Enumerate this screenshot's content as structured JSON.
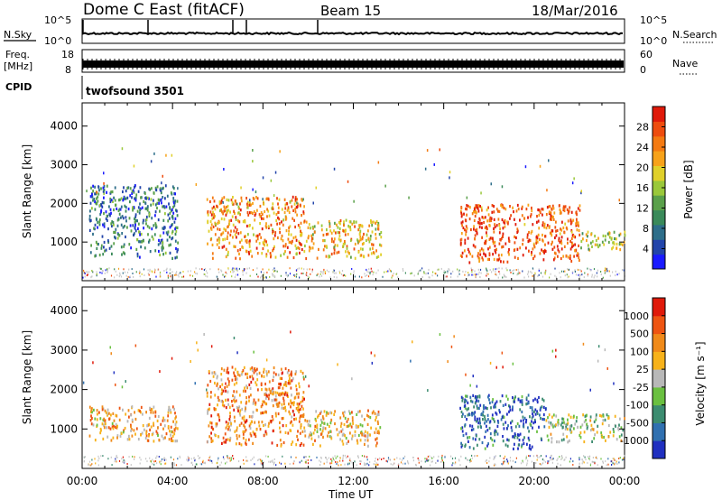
{
  "header": {
    "title": "Dome C East (fitACF)",
    "beam": "Beam 15",
    "date": "18/Mar/2016"
  },
  "status_panels": {
    "nsky_label": "N.Sky",
    "nsearch_label": "N.Search",
    "nsky_ticks": [
      "10^5",
      "10^0"
    ],
    "nsearch_ticks": [
      "10^5",
      "10^0"
    ],
    "freq_label": "Freq.",
    "freq_unit": "[MHz]",
    "freq_ticks": [
      "18",
      "8"
    ],
    "nave_label": "Nave",
    "nave_ticks": [
      "60",
      "0"
    ],
    "cpid_label": "CPID",
    "cpid_value": "twofsound 3501"
  },
  "colors": {
    "power_scale": [
      "#1a1aff",
      "#2244aa",
      "#2e6e8a",
      "#3a8a5a",
      "#5aa04a",
      "#9ac83a",
      "#e0d02a",
      "#f7a21a",
      "#f47a12",
      "#ee4c0e",
      "#e01a0a"
    ],
    "velocity_scale": [
      "#2030c0",
      "#3070b0",
      "#3c8c70",
      "#6ac040",
      "#b8b8b8",
      "#f7b21a",
      "#f08a1a",
      "#ee5512",
      "#e01a0a"
    ],
    "ground_scatter": "#b8b8b8"
  },
  "chart_data": [
    {
      "type": "heatmap",
      "name": "power",
      "ylabel": "Slant Range [km]",
      "yticks": [
        1000,
        2000,
        3000,
        4000
      ],
      "ylim": [
        0,
        4600
      ],
      "xlim": [
        0,
        24
      ],
      "xticks": [
        "00:00",
        "04:00",
        "08:00",
        "12:00",
        "16:00",
        "20:00",
        "00:00"
      ],
      "colorbar_label": "Power [dB]",
      "colorbar_ticks": [
        "28",
        "24",
        "20",
        "16",
        "12",
        "8",
        "4"
      ],
      "regions": [
        {
          "t0": 0.3,
          "t1": 4.2,
          "r0": 600,
          "r1": 2500,
          "level": 0.25
        },
        {
          "t0": 5.5,
          "t1": 9.8,
          "r0": 600,
          "r1": 2200,
          "level": 0.75
        },
        {
          "t0": 9.8,
          "t1": 13.2,
          "r0": 600,
          "r1": 1600,
          "level": 0.65
        },
        {
          "t0": 16.7,
          "t1": 22.0,
          "r0": 500,
          "r1": 2000,
          "level": 0.85
        },
        {
          "t0": 22.0,
          "t1": 24.0,
          "r0": 800,
          "r1": 1300,
          "level": 0.5
        }
      ]
    },
    {
      "type": "heatmap",
      "name": "velocity",
      "ylabel": "Slant Range [km]",
      "yticks": [
        1000,
        2000,
        3000,
        4000
      ],
      "ylim": [
        0,
        4600
      ],
      "xlim": [
        0,
        24
      ],
      "xlabel": "Time UT",
      "xticks": [
        "00:00",
        "04:00",
        "08:00",
        "12:00",
        "16:00",
        "20:00",
        "00:00"
      ],
      "colorbar_label": "Velocity [m s⁻¹]",
      "colorbar_ticks": [
        "1000",
        "500",
        "100",
        "25",
        "-25",
        "-100",
        "-500",
        "-1000"
      ],
      "regions": [
        {
          "t0": 0.3,
          "t1": 4.2,
          "r0": 700,
          "r1": 1600,
          "level": 0.65
        },
        {
          "t0": 5.5,
          "t1": 9.8,
          "r0": 600,
          "r1": 2600,
          "level": 0.72
        },
        {
          "t0": 9.8,
          "t1": 13.2,
          "r0": 600,
          "r1": 1500,
          "level": 0.6
        },
        {
          "t0": 16.7,
          "t1": 20.5,
          "r0": 500,
          "r1": 1900,
          "level": 0.15
        },
        {
          "t0": 20.5,
          "t1": 24.0,
          "r0": 700,
          "r1": 1400,
          "level": 0.45
        }
      ]
    }
  ]
}
